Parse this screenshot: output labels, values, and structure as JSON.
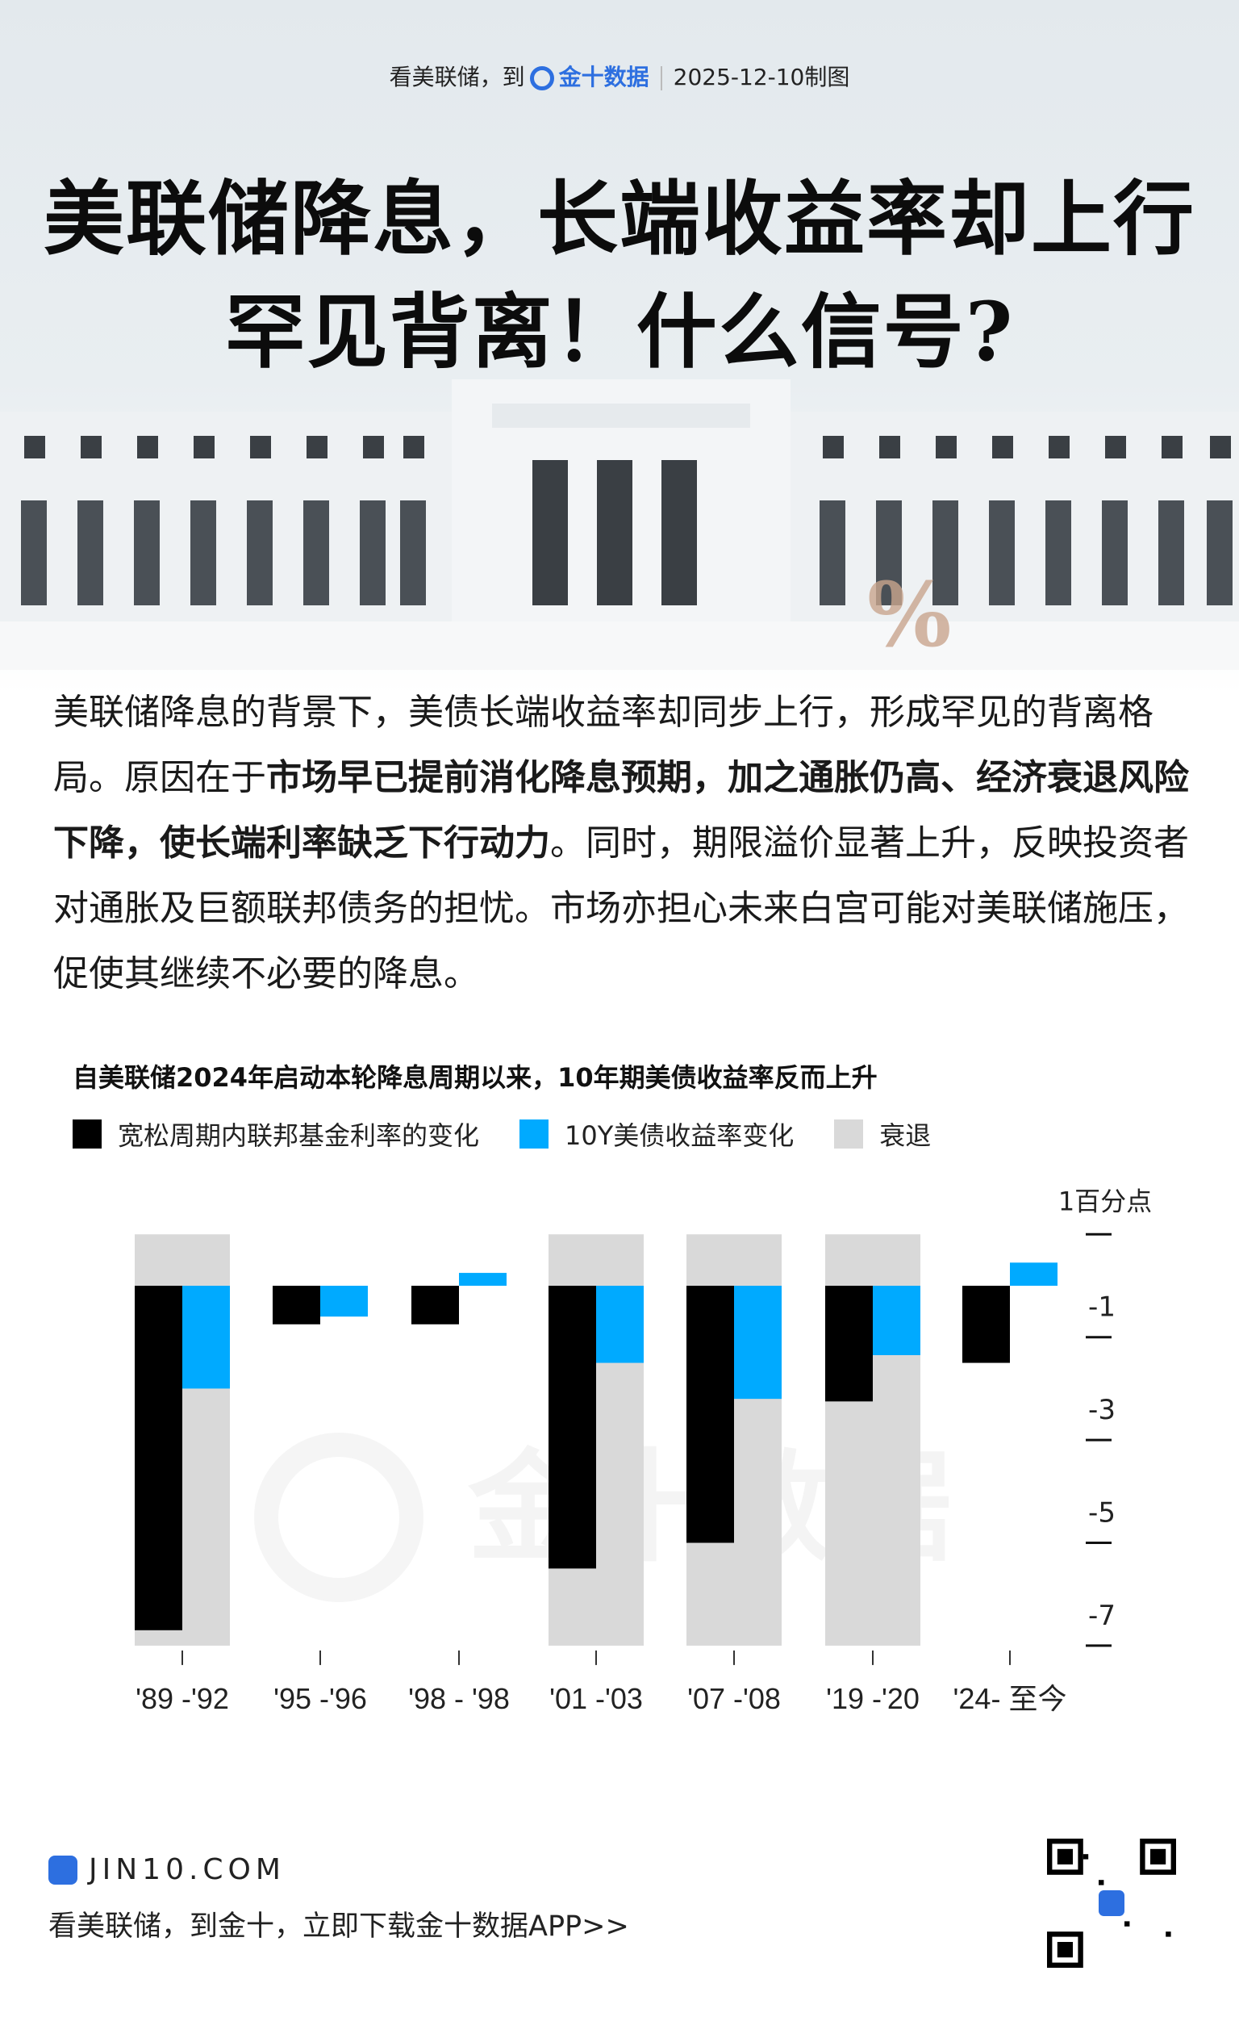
{
  "header": {
    "prefix": "看美联储，到",
    "brand": "金十数据",
    "date": "2025-12-10制图"
  },
  "title": {
    "line1": "美联储降息，长端收益率却上行",
    "line2": "罕见背离！什么信号?"
  },
  "paragraph": {
    "p1": "美联储降息的背景下，美债长端收益率却同步上行，形成罕见的背离格局。原因在于",
    "bold": "市场早已提前消化降息预期，加之通胀仍高、经济衰退风险下降，使长端利率缺乏下行动力",
    "p2": "。同时，期限溢价显著上升，反映投资者对通胀及巨额联邦债务的担忧。市场亦担心未来白宫可能对美联储施压，促使其继续不必要的降息。"
  },
  "chart_data": {
    "type": "bar",
    "title": "自美联储2024年启动本轮降息周期以来，10年期美债收益率反而上升",
    "unit_label": "1百分点",
    "categories": [
      "'89 -'92",
      "'95 -'96",
      "'98 - '98",
      "'01 -'03",
      "'07 -'08",
      "'19 -'20",
      "'24- 至今"
    ],
    "series": [
      {
        "name": "宽松周期内联邦基金利率的变化",
        "color": "#000000",
        "values": [
          -6.7,
          -0.75,
          -0.75,
          -5.5,
          -5.0,
          -2.25,
          -1.5
        ]
      },
      {
        "name": "10Y美债收益率变化",
        "color": "#00aaff",
        "values": [
          -2.0,
          -0.6,
          0.25,
          -1.5,
          -2.2,
          -1.35,
          0.45
        ]
      }
    ],
    "recession": {
      "name": "衰退",
      "color": "#d9d9d9",
      "values": [
        true,
        false,
        false,
        true,
        true,
        true,
        false
      ]
    },
    "yticks": [
      1,
      -1,
      -3,
      -5,
      -7
    ],
    "ytick_labels": [
      "",
      "-1",
      "-3",
      "-5",
      "-7"
    ],
    "ylim": [
      -7,
      1
    ],
    "y_axis_side": "right",
    "legend_position": "top"
  },
  "footer": {
    "site": "JIN10.COM",
    "cta": "看美联储，到金十，立即下载金十数据APP>>"
  },
  "watermark": "金十数据",
  "colors": {
    "brand": "#2d6fe0",
    "black": "#000000",
    "blue": "#00aaff",
    "gray": "#d9d9d9"
  }
}
